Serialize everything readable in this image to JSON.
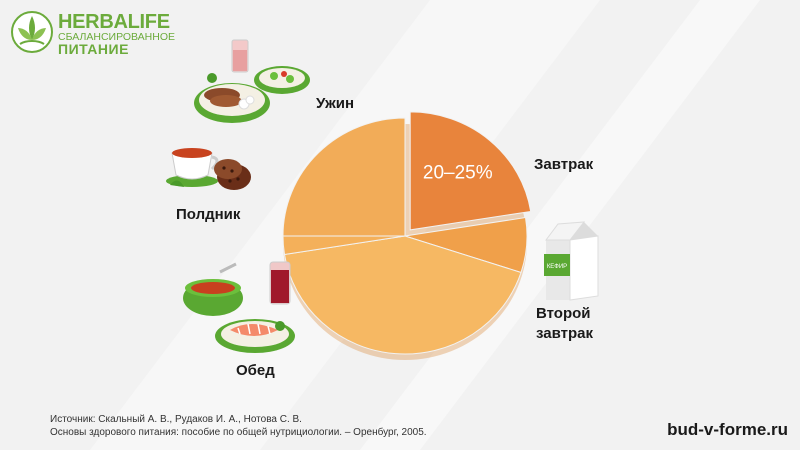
{
  "brand": {
    "name": "HERBALIFE",
    "line1": "СБАЛАНСИРОВАННОЕ",
    "line2": "ПИТАНИЕ"
  },
  "chart_data": {
    "type": "pie",
    "categories": [
      "Завтрак",
      "Второй завтрак",
      "Обед",
      "Полдник",
      "Ужин"
    ],
    "values": [
      22.5,
      7.5,
      42.5,
      2.5,
      25
    ],
    "data_labels": {
      "Завтрак": "20–25%"
    },
    "colors": [
      "#e8843c",
      "#f0a04a",
      "#f6b863",
      "#f4b05a",
      "#f2ac58"
    ]
  },
  "labels": {
    "dinner": "Ужин",
    "snack": "Полдник",
    "lunch": "Обед",
    "breakfast": "Завтрак",
    "second_line1": "Второй",
    "second_line2": "завтрак"
  },
  "illustrations": {
    "kefir_label": "КЕФИР"
  },
  "source": {
    "line1": "Источник: Скальный А. В., Рудаков И. А., Нотова С. В.",
    "line2": "Основы здорового питания: пособие по общей нутрициологии. – Оренбург, 2005."
  },
  "site": "bud-v-forme.ru"
}
